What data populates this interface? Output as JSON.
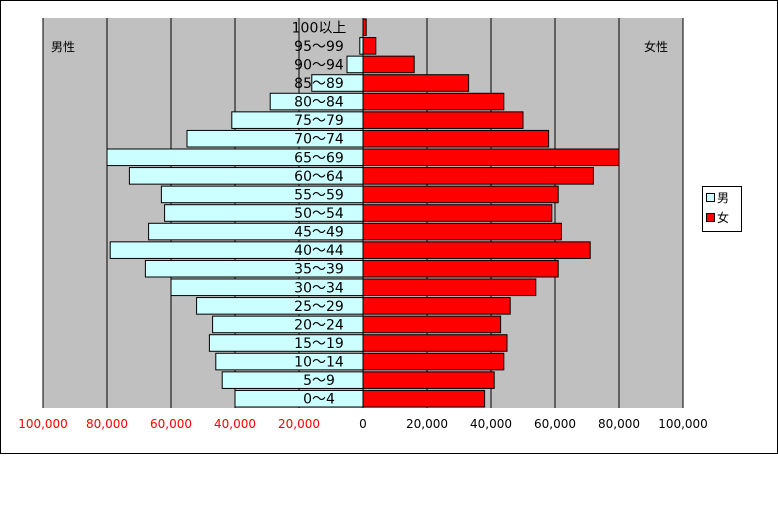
{
  "chart_data": {
    "type": "bar",
    "title": "",
    "left_label": "男性",
    "right_label": "女性",
    "categories": [
      "0～4",
      "5～9",
      "10～14",
      "15～19",
      "20～24",
      "25～29",
      "30～34",
      "35～39",
      "40～44",
      "45～49",
      "50～54",
      "55～59",
      "60～64",
      "65～69",
      "70～74",
      "75～79",
      "80～84",
      "85～89",
      "90～94",
      "95～99",
      "100以上"
    ],
    "series": [
      {
        "name": "男",
        "side": "left",
        "color": "#ccffff",
        "values": [
          40000,
          44000,
          46000,
          48000,
          47000,
          52000,
          60000,
          68000,
          79000,
          67000,
          62000,
          63000,
          73000,
          80000,
          55000,
          41000,
          29000,
          16000,
          5000,
          1000,
          0
        ]
      },
      {
        "name": "女",
        "side": "right",
        "color": "#ff0000",
        "values": [
          38000,
          41000,
          44000,
          45000,
          43000,
          46000,
          54000,
          61000,
          71000,
          62000,
          59000,
          61000,
          72000,
          80000,
          58000,
          50000,
          44000,
          33000,
          16000,
          4000,
          1000
        ]
      }
    ],
    "xlim": [
      -100000,
      100000
    ],
    "xticks": [
      {
        "value": -100000,
        "label": "100,000"
      },
      {
        "value": -80000,
        "label": "80,000"
      },
      {
        "value": -60000,
        "label": "60,000"
      },
      {
        "value": -40000,
        "label": "40,000"
      },
      {
        "value": -20000,
        "label": "20,000"
      },
      {
        "value": 0,
        "label": "0"
      },
      {
        "value": 20000,
        "label": "20,000"
      },
      {
        "value": 40000,
        "label": "40,000"
      },
      {
        "value": 60000,
        "label": "60,000"
      },
      {
        "value": 80000,
        "label": "80,000"
      },
      {
        "value": 100000,
        "label": "100,000"
      }
    ],
    "colors": {
      "plot_bg": "#c0c0c0",
      "left_ticks": "#ff0000",
      "right_ticks": "#000000"
    },
    "legend_position": "right",
    "grid": true
  }
}
